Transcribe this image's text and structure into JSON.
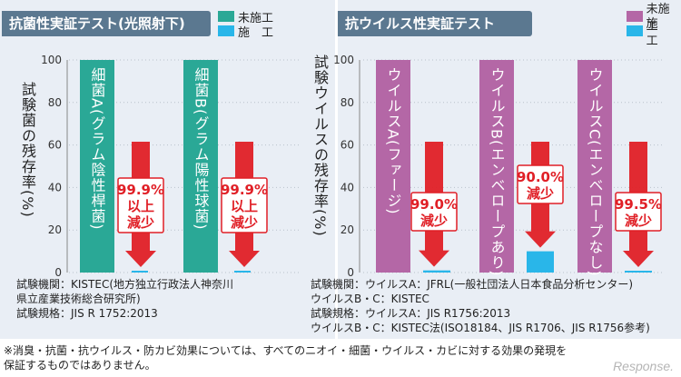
{
  "colors": {
    "untreated_left": "#2aa896",
    "treated": "#29b6e9",
    "untreated_right": "#b467a6",
    "arrow": "#e01f26",
    "panel_bg": "#e9eef5",
    "title_bg": "#5b7890"
  },
  "left": {
    "title": "抗菌性実証テスト(光照射下)",
    "legend": [
      "未施工",
      "施　工"
    ],
    "ylabel": "試験菌の残存率(%)",
    "footer": [
      "試験機関：KISTEC(地方独立行政法人神奈川",
      "県立産業技術総合研究所)",
      "試験規格：JIS R 1752:2013"
    ]
  },
  "right": {
    "title": "抗ウイルス性実証テスト",
    "legend": [
      "未施工",
      "施　工"
    ],
    "ylabel": "試験ウイルスの残存率(%)",
    "footer": [
      "試験機関：ウイルスA：JFRL(一般社団法人日本食品分析センター)",
      "ウイルスB・C：KISTEC",
      "試験規格：ウイルスA：JIS R1756:2013",
      "ウイルスB・C：KISTEC法(ISO18184、JIS R1706、JIS R1756参考)"
    ]
  },
  "footnote": [
    "※消臭・抗菌・抗ウイルス・防カビ効果については、すべてのニオイ・細菌・ウイルス・カビに対する効果の発現を",
    "保証するものではありません。"
  ],
  "watermark": "Response.",
  "chart_data": [
    {
      "type": "bar",
      "title": "抗菌性実証テスト(光照射下)",
      "ylabel": "試験菌の残存率(%)",
      "ylim": [
        0,
        100
      ],
      "yticks": [
        "0",
        "20",
        "40",
        "60",
        "80",
        "100"
      ],
      "legend": [
        "未施工",
        "施　工"
      ],
      "categories": [
        "細菌A(グラム陰性桿菌)",
        "細菌B(グラム陽性球菌)"
      ],
      "series": [
        {
          "name": "未施工",
          "values": [
            100,
            100
          ]
        },
        {
          "name": "施　工",
          "values": [
            0.1,
            0.1
          ]
        }
      ],
      "annotations": [
        [
          "99.9%",
          "以上",
          "減少"
        ],
        [
          "99.9%",
          "以上",
          "減少"
        ]
      ]
    },
    {
      "type": "bar",
      "title": "抗ウイルス性実証テスト",
      "ylabel": "試験ウイルスの残存率(%)",
      "ylim": [
        0,
        100
      ],
      "yticks": [
        "0",
        "20",
        "40",
        "60",
        "80",
        "100"
      ],
      "legend": [
        "未施工",
        "施　工"
      ],
      "categories": [
        "ウイルスA(ファージ)",
        "ウイルスB(エンベロープあり)",
        "ウイルスC(エンベロープなし)"
      ],
      "series": [
        {
          "name": "未施工",
          "values": [
            100,
            100,
            100
          ]
        },
        {
          "name": "施　工",
          "values": [
            1.0,
            10.0,
            0.5
          ]
        }
      ],
      "annotations": [
        [
          "99.0%",
          "減少"
        ],
        [
          "90.0%",
          "減少"
        ],
        [
          "99.5%",
          "減少"
        ]
      ]
    }
  ]
}
